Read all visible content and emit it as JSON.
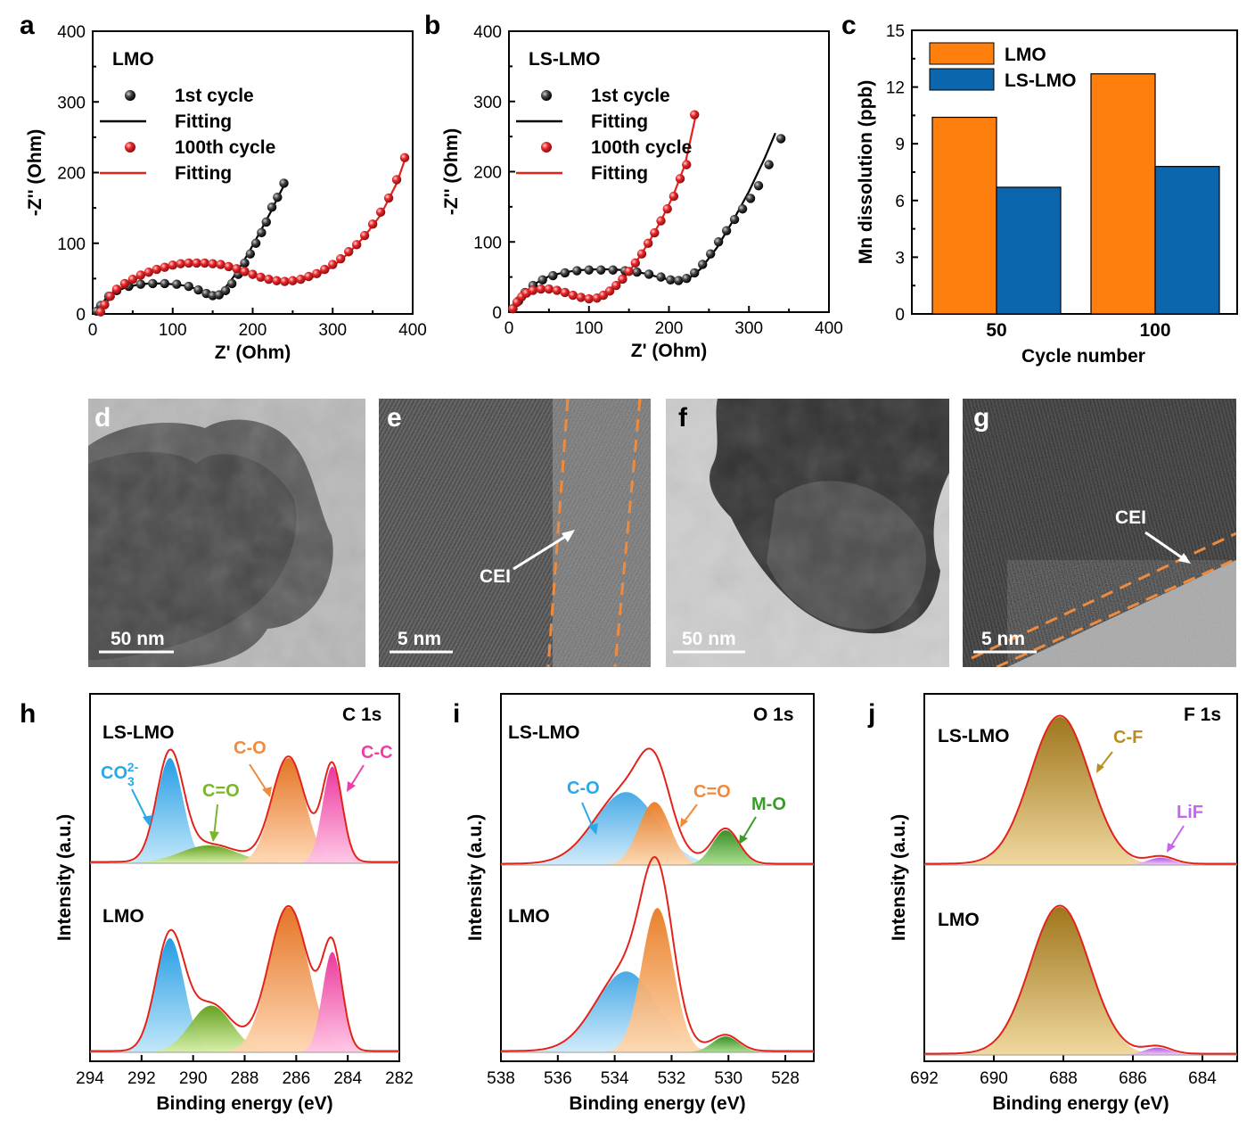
{
  "panel_labels": {
    "a": "a",
    "b": "b",
    "c": "c",
    "d": "d",
    "e": "e",
    "f": "f",
    "g": "g",
    "h": "h",
    "i": "i",
    "j": "j"
  },
  "colors": {
    "black": "#000000",
    "red": "#e2231a",
    "orange": "#ff7f0e",
    "blue": "#0b66ad",
    "co3": "#29a9e8",
    "co": "#f08a3c",
    "cc": "#ee3fa8",
    "ceq": "#7ab52a",
    "mo": "#3c9a2a",
    "cf": "#b8901f",
    "lif": "#c466e8"
  },
  "chart_data": [
    {
      "id": "a",
      "type": "scatter",
      "title": "LMO",
      "xlabel": "Z' (Ohm)",
      "ylabel": "-Z'' (Ohm)",
      "xlim": [
        0,
        400
      ],
      "ylim": [
        0,
        400
      ],
      "xticks": [
        0,
        100,
        200,
        300,
        400
      ],
      "yticks": [
        0,
        100,
        200,
        300,
        400
      ],
      "legend": [
        "1st cycle",
        "Fitting",
        "100th cycle",
        "Fitting"
      ],
      "series": [
        {
          "name": "1st cycle",
          "kind": "points",
          "x": [
            5,
            10,
            20,
            30,
            45,
            60,
            75,
            90,
            105,
            120,
            132,
            142,
            150,
            158,
            166,
            174,
            182,
            190,
            197,
            204,
            211,
            217,
            224,
            231,
            239
          ],
          "y": [
            4,
            12,
            25,
            33,
            39,
            42,
            43,
            43,
            42,
            39,
            34,
            29,
            26,
            27,
            33,
            43,
            56,
            72,
            85,
            100,
            115,
            130,
            151,
            165,
            185
          ]
        },
        {
          "name": "Fitting",
          "kind": "line",
          "x": [
            2,
            8,
            16,
            25,
            40,
            55,
            70,
            85,
            100,
            115,
            128,
            140,
            148,
            156,
            164,
            172,
            182,
            192,
            202,
            212,
            222,
            232,
            240
          ],
          "y": [
            0,
            10,
            21,
            30,
            37,
            41,
            43,
            43,
            42,
            40,
            36,
            30,
            27,
            28,
            35,
            46,
            62,
            81,
            101,
            122,
            143,
            166,
            184
          ]
        },
        {
          "name": "100th cycle",
          "kind": "points",
          "x": [
            10,
            15,
            22,
            30,
            40,
            50,
            60,
            70,
            80,
            90,
            100,
            110,
            120,
            130,
            140,
            150,
            160,
            170,
            180,
            190,
            200,
            210,
            220,
            230,
            240,
            250,
            260,
            270,
            280,
            290,
            300,
            310,
            320,
            330,
            340,
            350,
            360,
            370,
            380,
            390
          ],
          "y": [
            3,
            13,
            25,
            35,
            43,
            49,
            55,
            59,
            63,
            66,
            69,
            71,
            72,
            72,
            72,
            71,
            70,
            67,
            64,
            60,
            56,
            52,
            49,
            47,
            46,
            47,
            49,
            53,
            57,
            63,
            70,
            78,
            88,
            98,
            111,
            127,
            144,
            164,
            190,
            221
          ]
        },
        {
          "name": "Fitting",
          "kind": "line",
          "x": [
            8,
            15,
            25,
            40,
            60,
            80,
            100,
            120,
            140,
            160,
            180,
            200,
            220,
            240,
            250,
            260,
            280,
            300,
            320,
            340,
            360,
            380,
            392
          ],
          "y": [
            0,
            12,
            27,
            41,
            53,
            62,
            68,
            71,
            72,
            70,
            64,
            56,
            50,
            47,
            46,
            47,
            54,
            67,
            86,
            110,
            140,
            185,
            224
          ]
        }
      ]
    },
    {
      "id": "b",
      "type": "scatter",
      "title": "LS-LMO",
      "xlabel": "Z' (Ohm)",
      "ylabel": "-Z'' (Ohm)",
      "xlim": [
        0,
        400
      ],
      "ylim": [
        0,
        400
      ],
      "xticks": [
        0,
        100,
        200,
        300,
        400
      ],
      "yticks": [
        0,
        100,
        200,
        300,
        400
      ],
      "legend": [
        "1st cycle",
        "Fitting",
        "100th cycle",
        "Fitting"
      ],
      "series": [
        {
          "name": "1st cycle",
          "kind": "points",
          "x": [
            5,
            12,
            20,
            30,
            42,
            55,
            70,
            85,
            100,
            115,
            130,
            145,
            160,
            175,
            190,
            202,
            212,
            222,
            232,
            242,
            252,
            262,
            272,
            282,
            292,
            302,
            312,
            325,
            340
          ],
          "y": [
            5,
            16,
            28,
            38,
            46,
            52,
            56,
            59,
            60,
            60,
            60,
            59,
            57,
            54,
            50,
            46,
            45,
            48,
            56,
            68,
            83,
            100,
            116,
            132,
            147,
            162,
            180,
            210,
            247
          ]
        },
        {
          "name": "Fitting",
          "kind": "line",
          "x": [
            2,
            10,
            20,
            35,
            50,
            70,
            90,
            110,
            130,
            150,
            170,
            190,
            205,
            215,
            225,
            240,
            260,
            280,
            300,
            320,
            333
          ],
          "y": [
            0,
            14,
            28,
            42,
            51,
            57,
            60,
            61,
            61,
            59,
            55,
            49,
            45,
            45,
            48,
            62,
            92,
            130,
            172,
            220,
            255
          ]
        },
        {
          "name": "100th cycle",
          "kind": "points",
          "x": [
            5,
            10,
            16,
            22,
            30,
            40,
            50,
            60,
            70,
            80,
            90,
            100,
            110,
            118,
            126,
            134,
            142,
            150,
            158,
            166,
            174,
            182,
            190,
            198,
            206,
            214,
            222,
            232
          ],
          "y": [
            5,
            14,
            22,
            27,
            31,
            33,
            33,
            31,
            28,
            24,
            21,
            19,
            20,
            24,
            30,
            38,
            47,
            58,
            70,
            83,
            98,
            113,
            130,
            147,
            165,
            190,
            210,
            281
          ]
        },
        {
          "name": "Fitting",
          "kind": "line",
          "x": [
            3,
            10,
            20,
            30,
            45,
            60,
            75,
            90,
            105,
            115,
            125,
            135,
            145,
            160,
            175,
            190,
            205,
            220,
            234
          ],
          "y": [
            0,
            14,
            25,
            30,
            33,
            32,
            28,
            23,
            20,
            21,
            27,
            37,
            50,
            73,
            100,
            130,
            165,
            210,
            282
          ]
        }
      ]
    },
    {
      "id": "c",
      "type": "bar",
      "xlabel": "Cycle number",
      "ylabel": "Mn dissolution (ppb)",
      "ylim": [
        0,
        15
      ],
      "yticks": [
        0,
        3,
        6,
        9,
        12,
        15
      ],
      "categories": [
        "50",
        "100"
      ],
      "series": [
        {
          "name": "LMO",
          "values": [
            10.4,
            12.7
          ]
        },
        {
          "name": "LS-LMO",
          "values": [
            6.7,
            7.8
          ]
        }
      ]
    },
    {
      "id": "h",
      "type": "area",
      "title": "C 1s",
      "xlabel": "Binding energy (eV)",
      "ylabel": "Intensity (a.u.)",
      "xlim": [
        294,
        282
      ],
      "xticks": [
        294,
        292,
        290,
        288,
        286,
        284,
        282
      ],
      "samples": [
        "LS-LMO",
        "LMO"
      ],
      "peaks": {
        "LS-LMO": [
          {
            "name": "CO3 2-",
            "center": 290.9,
            "amp": 1.0,
            "fwhm": 1.2
          },
          {
            "name": "C=O",
            "center": 289.4,
            "amp": 0.17,
            "fwhm": 2.6
          },
          {
            "name": "C-O",
            "center": 286.3,
            "amp": 1.0,
            "fwhm": 1.5
          },
          {
            "name": "C-C",
            "center": 284.6,
            "amp": 0.92,
            "fwhm": 0.9
          }
        ],
        "LMO": [
          {
            "name": "CO3 2-",
            "center": 290.9,
            "amp": 1.0,
            "fwhm": 1.3
          },
          {
            "name": "C=O",
            "center": 289.3,
            "amp": 0.41,
            "fwhm": 1.9
          },
          {
            "name": "C-O",
            "center": 286.3,
            "amp": 1.27,
            "fwhm": 1.8
          },
          {
            "name": "C-C",
            "center": 284.6,
            "amp": 0.88,
            "fwhm": 0.9
          }
        ]
      },
      "annotations": {
        "co3": "CO",
        "co3_sub": "3",
        "co3_sup": "2-",
        "ceq": "C=O",
        "co": "C-O",
        "cc": "C-C"
      }
    },
    {
      "id": "i",
      "type": "area",
      "title": "O 1s",
      "xlabel": "Binding energy (eV)",
      "ylabel": "Intensity (a.u.)",
      "xlim": [
        538,
        527
      ],
      "xticks": [
        538,
        536,
        534,
        532,
        530,
        528
      ],
      "samples": [
        "LS-LMO",
        "LMO"
      ],
      "peaks": {
        "LS-LMO": [
          {
            "name": "C-O",
            "center": 533.6,
            "amp": 0.44,
            "fwhm": 2.6
          },
          {
            "name": "C=O",
            "center": 532.6,
            "amp": 0.38,
            "fwhm": 1.3
          },
          {
            "name": "M-O",
            "center": 530.1,
            "amp": 0.21,
            "fwhm": 1.1
          }
        ],
        "LMO": [
          {
            "name": "C-O",
            "center": 533.6,
            "amp": 0.56,
            "fwhm": 2.5
          },
          {
            "name": "C=O",
            "center": 532.5,
            "amp": 1.0,
            "fwhm": 1.3
          },
          {
            "name": "M-O",
            "center": 530.1,
            "amp": 0.11,
            "fwhm": 1.1
          }
        ]
      },
      "annotations": {
        "co": "C-O",
        "ceq": "C=O",
        "mo": "M-O"
      }
    },
    {
      "id": "j",
      "type": "area",
      "title": "F 1s",
      "xlabel": "Binding energy (eV)",
      "ylabel": "Intensity (a.u.)",
      "xlim": [
        692,
        683
      ],
      "xticks": [
        692,
        690,
        688,
        686,
        684
      ],
      "samples": [
        "LS-LMO",
        "LMO"
      ],
      "peaks": {
        "LS-LMO": [
          {
            "name": "C-F",
            "center": 688.1,
            "amp": 1.0,
            "fwhm": 2.0
          },
          {
            "name": "LiF",
            "center": 685.2,
            "amp": 0.05,
            "fwhm": 0.9
          }
        ],
        "LMO": [
          {
            "name": "C-F",
            "center": 688.1,
            "amp": 1.0,
            "fwhm": 2.0
          },
          {
            "name": "LiF",
            "center": 685.3,
            "amp": 0.05,
            "fwhm": 0.9
          }
        ]
      },
      "annotations": {
        "cf": "C-F",
        "lif": "LiF"
      }
    }
  ],
  "tem": {
    "d": {
      "scale": "50 nm"
    },
    "e": {
      "scale": "5 nm",
      "label": "CEI"
    },
    "f": {
      "scale": "50 nm"
    },
    "g": {
      "scale": "5 nm",
      "label": "CEI"
    }
  }
}
